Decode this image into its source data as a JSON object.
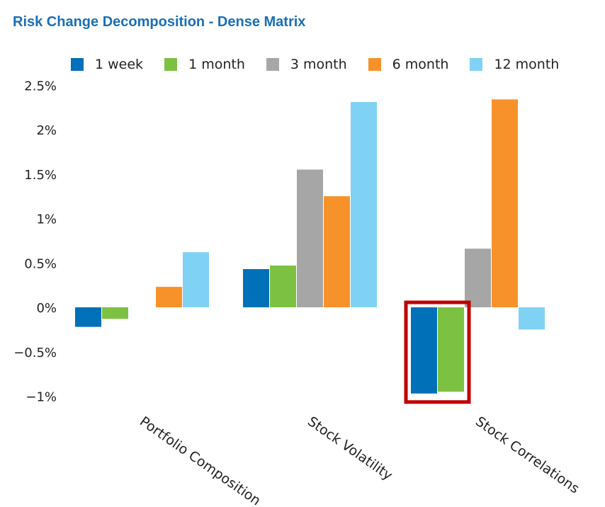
{
  "chart_data": {
    "type": "bar",
    "title": "Risk Change Decomposition - Dense Matrix",
    "categories": [
      "Portfolio Composition",
      "Stock Volatility",
      "Stock Correlations"
    ],
    "series": [
      {
        "name": "1 week",
        "color": "#0070b8",
        "values": [
          -0.22,
          0.43,
          -0.97
        ]
      },
      {
        "name": "1 month",
        "color": "#7dc142",
        "values": [
          -0.13,
          0.47,
          -0.95
        ]
      },
      {
        "name": "3 month",
        "color": "#a6a6a6",
        "values": [
          0.0,
          1.55,
          0.66
        ]
      },
      {
        "name": "6 month",
        "color": "#f7922a",
        "values": [
          0.23,
          1.25,
          2.34
        ]
      },
      {
        "name": "12 month",
        "color": "#80d2f5",
        "values": [
          0.62,
          2.31,
          -0.25
        ]
      }
    ],
    "yticks": [
      "2.5%",
      "2%",
      "1.5%",
      "1%",
      "0.5%",
      "0%",
      "−0.5%",
      "−1%"
    ],
    "ytick_values": [
      2.5,
      2,
      1.5,
      1,
      0.5,
      0,
      -0.5,
      -1
    ],
    "ylim": [
      -1,
      2.5
    ],
    "xlabel": "",
    "ylabel": "",
    "grid": false,
    "legend_position": "top",
    "highlight": {
      "category": "Stock Correlations",
      "series": [
        "1 week",
        "1 month"
      ],
      "color": "#c00000"
    }
  }
}
